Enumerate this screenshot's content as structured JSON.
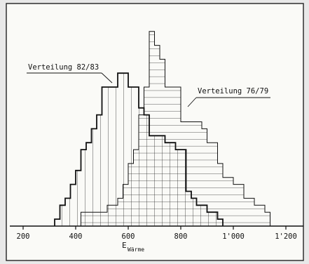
{
  "chart_data": {
    "type": "histogram",
    "xlabel": "E",
    "xlabel_sub": "Wärme",
    "xlim": [
      180,
      1230
    ],
    "ylim": [
      0,
      28
    ],
    "grid": false,
    "x_ticks": [
      {
        "value": 200,
        "label": "200"
      },
      {
        "value": 400,
        "label": "400"
      },
      {
        "value": 600,
        "label": "600"
      },
      {
        "value": 800,
        "label": "800"
      },
      {
        "value": 1000,
        "label": "1'000"
      },
      {
        "value": 1200,
        "label": "1'200"
      }
    ],
    "series": [
      {
        "name": "Verteilung 76/79",
        "pattern": "hatch",
        "bin_width": 20,
        "bins": [
          [
            420,
            2
          ],
          [
            440,
            2
          ],
          [
            460,
            2
          ],
          [
            480,
            2
          ],
          [
            500,
            2
          ],
          [
            520,
            3
          ],
          [
            540,
            3
          ],
          [
            560,
            4
          ],
          [
            580,
            6
          ],
          [
            600,
            9
          ],
          [
            620,
            11
          ],
          [
            640,
            16
          ],
          [
            660,
            20
          ],
          [
            680,
            28
          ],
          [
            700,
            26
          ],
          [
            720,
            24
          ],
          [
            740,
            20
          ],
          [
            760,
            20
          ],
          [
            780,
            20
          ],
          [
            800,
            15
          ],
          [
            820,
            15
          ],
          [
            840,
            15
          ],
          [
            860,
            15
          ],
          [
            880,
            14
          ],
          [
            900,
            12
          ],
          [
            920,
            12
          ],
          [
            940,
            9
          ],
          [
            960,
            7
          ],
          [
            980,
            7
          ],
          [
            1000,
            6
          ],
          [
            1020,
            6
          ],
          [
            1040,
            4
          ],
          [
            1060,
            4
          ],
          [
            1080,
            3
          ],
          [
            1100,
            3
          ],
          [
            1120,
            2
          ]
        ]
      },
      {
        "name": "Verteilung 82/83",
        "pattern": "vertical",
        "bin_width": 20,
        "bins": [
          [
            320,
            1
          ],
          [
            340,
            3
          ],
          [
            360,
            4
          ],
          [
            380,
            6
          ],
          [
            400,
            8
          ],
          [
            420,
            11
          ],
          [
            440,
            12
          ],
          [
            460,
            14
          ],
          [
            480,
            16
          ],
          [
            500,
            20
          ],
          [
            520,
            20
          ],
          [
            540,
            20
          ],
          [
            560,
            22
          ],
          [
            580,
            22
          ],
          [
            600,
            20
          ],
          [
            620,
            20
          ],
          [
            640,
            17
          ],
          [
            660,
            16
          ],
          [
            680,
            13
          ],
          [
            700,
            13
          ],
          [
            720,
            13
          ],
          [
            740,
            12
          ],
          [
            760,
            12
          ],
          [
            780,
            11
          ],
          [
            800,
            11
          ],
          [
            820,
            5
          ],
          [
            840,
            4
          ],
          [
            860,
            3
          ],
          [
            880,
            3
          ],
          [
            900,
            2
          ],
          [
            920,
            2
          ],
          [
            940,
            1
          ]
        ]
      }
    ],
    "annotations": [
      {
        "text": "Verteilung 82/83",
        "series": 1
      },
      {
        "text": "Verteilung 76/79",
        "series": 0
      }
    ]
  }
}
